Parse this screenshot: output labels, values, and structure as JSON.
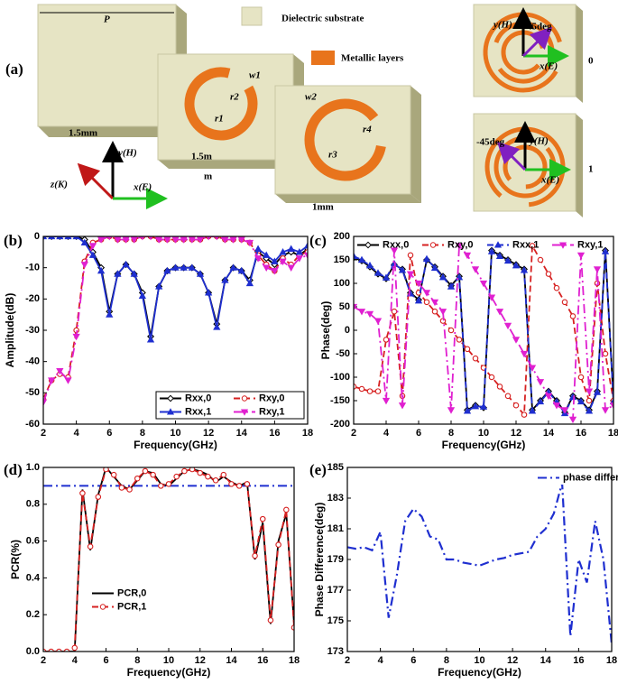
{
  "diagram": {
    "label": "(a)",
    "P": "P",
    "legend": [
      "Dielectric substrate",
      "Metallic layers"
    ],
    "dims": [
      "1.5mm",
      "1.5m",
      "m",
      "1mm"
    ],
    "ring_labels": [
      "w1",
      "r2",
      "r1",
      "w2",
      "r4",
      "r3"
    ],
    "axes": [
      "y(H)",
      "z(K)",
      "x(E)"
    ],
    "states": [
      {
        "y": "y(H)",
        "angle": "45deg",
        "x": "x(E)",
        "state": "0"
      },
      {
        "y": "y(H)",
        "angle": "-45deg",
        "x": "x(E)",
        "state": "1"
      }
    ]
  },
  "chart_data": [
    {
      "type": "line",
      "panel_label": "(b)",
      "x_label": "Frequency(GHz)",
      "y_label": "Amplitude(dB)",
      "xlim": [
        2,
        18
      ],
      "xticks": [
        2,
        4,
        6,
        8,
        10,
        12,
        14,
        16,
        18
      ],
      "ylim": [
        -60,
        0
      ],
      "yticks": [
        0,
        -10,
        -20,
        -30,
        -40,
        -50,
        -60
      ],
      "legend": "lower right",
      "x": [
        2,
        2.5,
        3,
        3.5,
        4,
        4.5,
        5,
        5.5,
        6,
        6.5,
        7,
        7.5,
        8,
        8.5,
        9,
        9.5,
        10,
        10.5,
        11,
        11.5,
        12,
        12.5,
        13,
        13.5,
        14,
        14.5,
        15,
        15.5,
        16,
        16.5,
        17,
        17.5,
        18
      ],
      "series": [
        {
          "name": "Rxx,0",
          "color": "#000000",
          "marker": "diamond",
          "style": "solid",
          "values": [
            0,
            0,
            0,
            0,
            0,
            -1,
            -5,
            -10,
            -24,
            -12,
            -9,
            -12,
            -18,
            -32,
            -16,
            -11,
            -10,
            -10,
            -10,
            -12,
            -18,
            -28,
            -14,
            -10,
            -11,
            -14,
            -5,
            -7,
            -9,
            -6,
            -5,
            -6,
            -4
          ]
        },
        {
          "name": "Rxy,0",
          "color": "#d62020",
          "marker": "circle",
          "style": "dashed",
          "values": [
            -52,
            -46,
            -44,
            -45,
            -30,
            -8,
            -2,
            -1,
            0,
            -1,
            -1,
            -1,
            0,
            0,
            -1,
            -1,
            -1,
            -1,
            -1,
            -1,
            0,
            0,
            -1,
            -1,
            -1,
            -2,
            -6,
            -9,
            -11,
            -7,
            -9,
            -6,
            -5
          ]
        },
        {
          "name": "Rxx,1",
          "color": "#1f2fd0",
          "marker": "triangle",
          "style": "solid",
          "values": [
            0,
            0,
            0,
            0,
            0,
            -2,
            -6,
            -11,
            -25,
            -12,
            -9,
            -12,
            -19,
            -33,
            -16,
            -11,
            -10,
            -10,
            -10,
            -12,
            -18,
            -29,
            -14,
            -10,
            -11,
            -15,
            -4,
            -6,
            -8,
            -5,
            -4,
            -5,
            -3
          ]
        },
        {
          "name": "Rxy,1",
          "color": "#e020d0",
          "marker": "triangle-down",
          "style": "dashdot",
          "values": [
            -53,
            -46,
            -43,
            -46,
            -32,
            -9,
            -3,
            -1,
            0,
            -1,
            -1,
            -1,
            0,
            0,
            -1,
            -1,
            -1,
            -1,
            -1,
            -1,
            0,
            0,
            -1,
            -1,
            -1,
            -2,
            -7,
            -10,
            -11,
            -8,
            -10,
            -7,
            -6
          ]
        }
      ]
    },
    {
      "type": "line",
      "panel_label": "(c)",
      "x_label": "Frequency(GHz)",
      "y_label": "Phase(deg)",
      "xlim": [
        2,
        18
      ],
      "xticks": [
        2,
        4,
        6,
        8,
        10,
        12,
        14,
        16,
        18
      ],
      "ylim": [
        -200,
        200
      ],
      "yticks": [
        -200,
        -150,
        -100,
        -50,
        0,
        50,
        100,
        150,
        200
      ],
      "legend": "upper center",
      "x": [
        2,
        2.5,
        3,
        3.5,
        4,
        4.5,
        5,
        5.5,
        6,
        6.5,
        7,
        7.5,
        8,
        8.5,
        9,
        9.5,
        10,
        10.5,
        11,
        11.5,
        12,
        12.5,
        13,
        13.5,
        14,
        14.5,
        15,
        15.5,
        16,
        16.5,
        17,
        17.5,
        18
      ],
      "series": [
        {
          "name": "Rxx,0",
          "color": "#000000",
          "marker": "diamond",
          "style": "solid",
          "values": [
            155,
            148,
            135,
            120,
            110,
            140,
            130,
            80,
            65,
            150,
            135,
            115,
            95,
            115,
            -170,
            -160,
            -165,
            170,
            160,
            150,
            140,
            130,
            -170,
            -150,
            -130,
            -150,
            -175,
            -140,
            -150,
            -170,
            -130,
            170,
            -150
          ]
        },
        {
          "name": "Rxy,0",
          "color": "#d62020",
          "marker": "circle",
          "style": "dashed",
          "values": [
            -120,
            -125,
            -130,
            -130,
            -20,
            40,
            -140,
            160,
            80,
            60,
            40,
            20,
            0,
            -20,
            -40,
            -60,
            -80,
            -100,
            -120,
            -140,
            -160,
            -180,
            180,
            150,
            120,
            90,
            60,
            30,
            -100,
            -150,
            100,
            -50,
            -150
          ]
        },
        {
          "name": "Rxx,1",
          "color": "#1f2fd0",
          "marker": "triangle",
          "style": "dashed",
          "values": [
            158,
            150,
            138,
            122,
            112,
            142,
            128,
            78,
            63,
            152,
            133,
            113,
            93,
            113,
            -172,
            -162,
            -163,
            168,
            158,
            148,
            138,
            128,
            -172,
            -152,
            -132,
            -152,
            -177,
            -142,
            -152,
            -172,
            -132,
            168,
            -152
          ]
        },
        {
          "name": "Rxy,1",
          "color": "#e020d0",
          "marker": "triangle-down",
          "style": "dashdot",
          "values": [
            50,
            40,
            35,
            20,
            -150,
            170,
            -160,
            120,
            100,
            80,
            60,
            40,
            -170,
            180,
            160,
            130,
            100,
            70,
            40,
            10,
            -20,
            -50,
            -80,
            -110,
            -140,
            -160,
            -170,
            -190,
            160,
            -130,
            130,
            -170,
            -160
          ]
        }
      ]
    },
    {
      "type": "line",
      "panel_label": "(d)",
      "x_label": "Frequency(GHz)",
      "y_label": "PCR(%)",
      "xlim": [
        2,
        18
      ],
      "xticks": [
        2,
        4,
        6,
        8,
        10,
        12,
        14,
        16,
        18
      ],
      "ylim": [
        0,
        1
      ],
      "yticks": [
        {
          "value": 0,
          "label": "0.0"
        },
        0.2,
        0.4,
        0.6,
        0.8,
        {
          "value": 1,
          "label": "1.0"
        }
      ],
      "hline": 0.9,
      "hline_color": "#1f2fd0",
      "legend": "center left",
      "x": [
        2,
        2.5,
        3,
        3.5,
        4,
        4.5,
        5,
        5.5,
        6,
        6.5,
        7,
        7.5,
        8,
        8.5,
        9,
        9.5,
        10,
        10.5,
        11,
        11.5,
        12,
        12.5,
        13,
        13.5,
        14,
        14.5,
        15,
        15.5,
        16,
        16.5,
        17,
        17.5,
        18
      ],
      "series": [
        {
          "name": "PCR,0",
          "color": "#000000",
          "style": "solid",
          "values": [
            0,
            0,
            0,
            0,
            0,
            0.88,
            0.55,
            0.85,
            1,
            0.95,
            0.9,
            0.88,
            0.93,
            0.98,
            0.97,
            0.91,
            0.9,
            0.94,
            0.98,
            0.99,
            0.98,
            0.96,
            0.92,
            0.95,
            0.92,
            0.9,
            0.92,
            0.5,
            0.7,
            0.15,
            0.6,
            0.75,
            0.15
          ]
        },
        {
          "name": "PCR,1",
          "color": "#d62020",
          "marker": "circle",
          "style": "dashed",
          "values": [
            0,
            0,
            0,
            0,
            0.02,
            0.86,
            0.57,
            0.84,
            0.99,
            0.96,
            0.89,
            0.88,
            0.94,
            0.98,
            0.96,
            0.9,
            0.91,
            0.95,
            0.98,
            0.99,
            0.97,
            0.95,
            0.93,
            0.96,
            0.91,
            0.9,
            0.91,
            0.52,
            0.72,
            0.17,
            0.58,
            0.77,
            0.13
          ]
        }
      ]
    },
    {
      "type": "line",
      "panel_label": "(e)",
      "x_label": "Frequency(GHz)",
      "y_label": "Phase Difference(deg)",
      "xlim": [
        2,
        18
      ],
      "xticks": [
        2,
        4,
        6,
        8,
        10,
        12,
        14,
        16,
        18
      ],
      "ylim": [
        173,
        185
      ],
      "yticks": [
        173,
        175,
        177,
        179,
        181,
        183,
        185
      ],
      "legend": "upper right",
      "x": [
        2,
        2.5,
        3,
        3.5,
        4,
        4.5,
        5,
        5.5,
        6,
        6.5,
        7,
        7.5,
        8,
        8.5,
        9,
        9.5,
        10,
        10.5,
        11,
        11.5,
        12,
        12.5,
        13,
        13.5,
        14,
        14.5,
        15,
        15.5,
        16,
        16.5,
        17,
        17.5,
        18
      ],
      "series": [
        {
          "name": "phase difference",
          "color": "#1f2fd0",
          "style": "dashdot",
          "values": [
            179.8,
            179.7,
            179.8,
            179.6,
            180.8,
            175.2,
            178,
            181.5,
            182.3,
            181.8,
            180.5,
            180.3,
            179,
            179,
            178.8,
            178.7,
            178.6,
            178.8,
            179,
            179.1,
            179.3,
            179.4,
            179.5,
            180.5,
            181,
            182,
            184,
            174,
            179,
            177.5,
            181.5,
            179,
            173.5
          ]
        }
      ]
    }
  ]
}
